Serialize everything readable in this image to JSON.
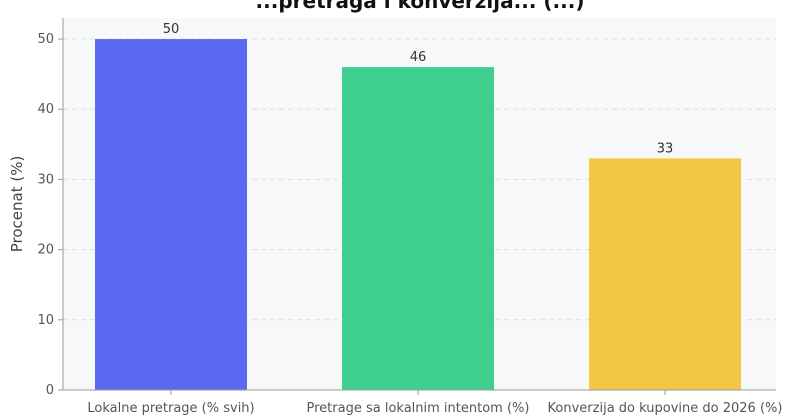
{
  "chart_data": {
    "type": "bar",
    "title": "...pretraga i konverzija... (...)",
    "xlabel": "",
    "ylabel": "Procenat (%)",
    "categories": [
      "Lokalne pretrage (% svih)",
      "Pretrage sa lokalnim intentom (%)",
      "Konverzija do kupovine do 2026 (%)"
    ],
    "values": [
      50,
      46,
      33
    ],
    "data_labels": [
      "50",
      "46",
      "33"
    ],
    "colors": [
      "#5b6af0",
      "#3ecf8e",
      "#f2c744"
    ],
    "ylim": [
      0,
      53
    ],
    "yticks": [
      0,
      10,
      20,
      30,
      40,
      50
    ],
    "grid": true,
    "legend": "none"
  }
}
